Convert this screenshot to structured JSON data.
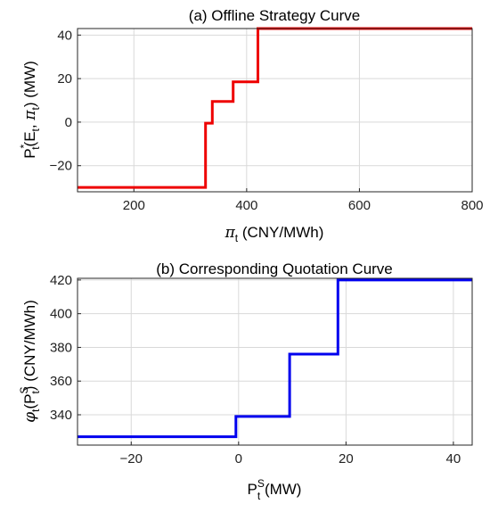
{
  "chart_data": [
    {
      "type": "line",
      "title": "(a) Offline Strategy Curve",
      "xlabel": "π_t (CNY/MWh)",
      "ylabel": "P*_t(E_t, π_t) (MW)",
      "xlim": [
        100,
        800
      ],
      "ylim": [
        -32,
        43
      ],
      "xticks": [
        200,
        400,
        600,
        800
      ],
      "yticks": [
        -20,
        0,
        20,
        40
      ],
      "xtick_labels": [
        "200",
        "400",
        "600",
        "800"
      ],
      "ytick_labels": [
        "−20",
        "0",
        "20",
        "40"
      ],
      "grid": true,
      "series": [
        {
          "color": "#ee0000",
          "step": "vertical-then-horizontal",
          "x": [
            100,
            327,
            327,
            339,
            339,
            376,
            376,
            420,
            420,
            800
          ],
          "y": [
            -30,
            -30,
            -0.5,
            -0.5,
            9.5,
            9.5,
            18.5,
            18.5,
            43,
            43
          ]
        }
      ]
    },
    {
      "type": "line",
      "title": "(b) Corresponding Quotation Curve",
      "xlabel": "P^S_t (MW)",
      "ylabel": "φ_t(P^S_t) (CNY/MWh)",
      "xlim": [
        -30,
        43.5
      ],
      "ylim": [
        322,
        421
      ],
      "xticks": [
        -20,
        0,
        20,
        40
      ],
      "yticks": [
        340,
        360,
        380,
        400,
        420
      ],
      "xtick_labels": [
        "−20",
        "0",
        "20",
        "40"
      ],
      "ytick_labels": [
        "340",
        "360",
        "380",
        "400",
        "420"
      ],
      "grid": true,
      "series": [
        {
          "color": "#0000ee",
          "x": [
            -30,
            -0.5,
            -0.5,
            9.5,
            9.5,
            18.5,
            18.5,
            43.5
          ],
          "y": [
            327,
            327,
            339,
            339,
            376,
            376,
            420,
            420
          ]
        }
      ]
    }
  ]
}
